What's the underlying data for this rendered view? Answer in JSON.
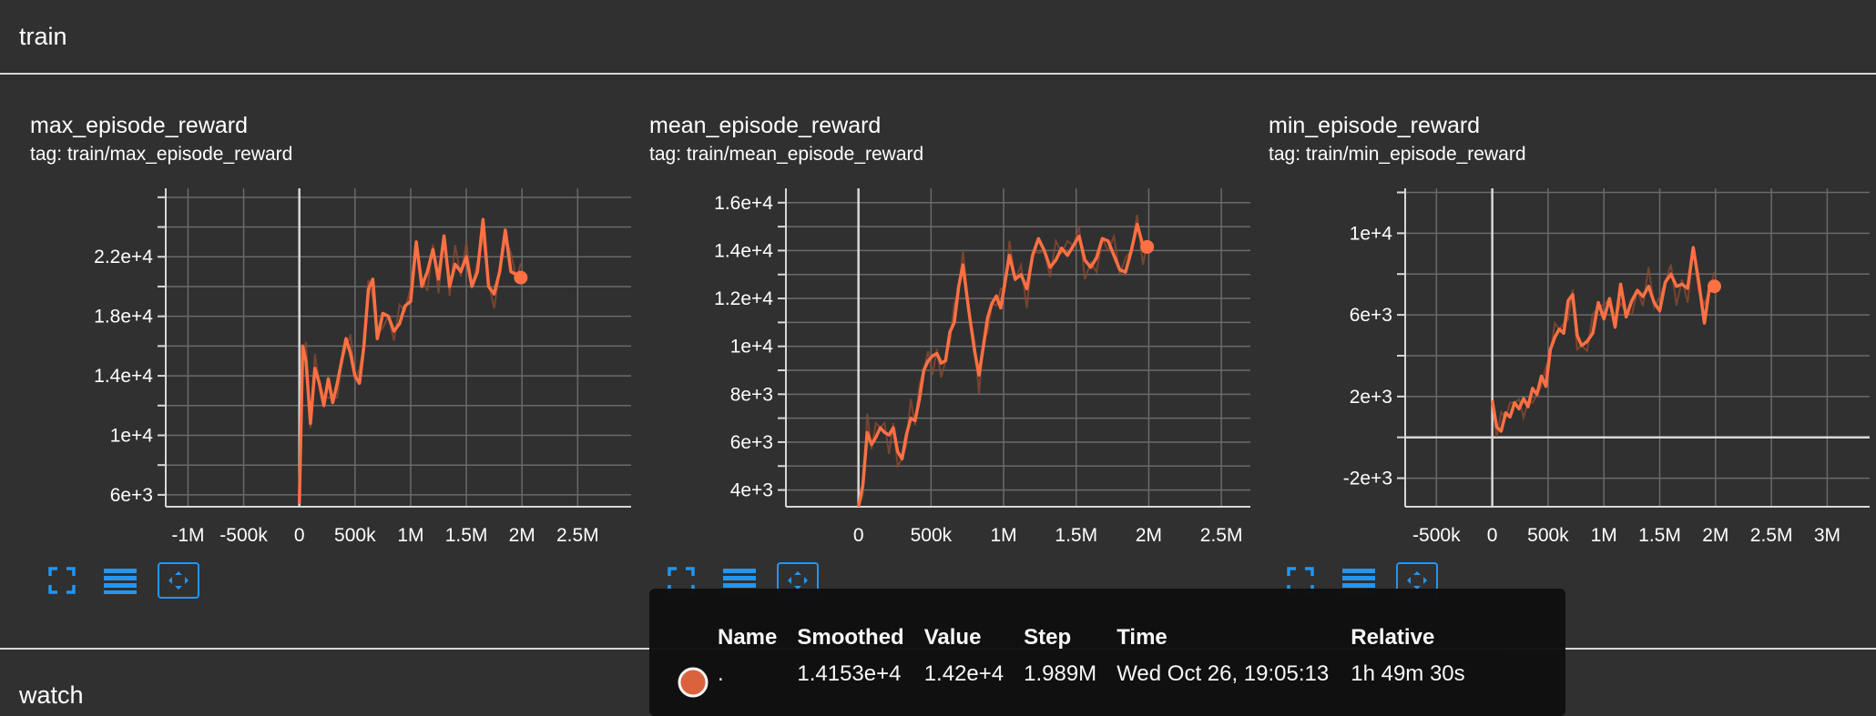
{
  "sections": {
    "train": "train",
    "watch": "watch"
  },
  "colors": {
    "line": "#ff7043",
    "raw": "#8a4a32",
    "grid": "#6a6a6a",
    "axis": "#d8d8d8",
    "button": "#2196f3",
    "swatch": "#e0653f"
  },
  "icons": [
    "fit-to-data-icon",
    "toggle-log-scale-icon",
    "expand-icon"
  ],
  "chart_data": [
    {
      "type": "line",
      "title": "max_episode_reward",
      "tag": "tag: train/max_episode_reward",
      "xlim": [
        -1200000,
        2980000
      ],
      "ylim": [
        5200000,
        0
      ],
      "ylim_real": [
        5200,
        26600
      ],
      "xticks": [
        -1000000,
        -500000,
        0,
        500000,
        1000000,
        1500000,
        2000000,
        2500000
      ],
      "xtick_labels": [
        "-1M",
        "-500k",
        "0",
        "500k",
        "1M",
        "1.5M",
        "2M",
        "2.5M"
      ],
      "yticks": [
        6000,
        10000,
        14000,
        18000,
        22000
      ],
      "ytick_labels": [
        "6e+3",
        "1e+4",
        "1.4e+4",
        "1.8e+4",
        "2.2e+4"
      ],
      "series": [
        {
          "x": [
            0,
            30000,
            60000,
            100000,
            140000,
            180000,
            220000,
            260000,
            300000,
            340000,
            380000,
            420000,
            460000,
            500000,
            540000,
            580000,
            620000,
            660000,
            700000,
            750000,
            800000,
            850000,
            900000,
            950000,
            1000000,
            1050000,
            1100000,
            1150000,
            1200000,
            1250000,
            1300000,
            1350000,
            1400000,
            1450000,
            1500000,
            1550000,
            1600000,
            1650000,
            1700000,
            1750000,
            1800000,
            1850000,
            1900000,
            1950000,
            1989000
          ],
          "y": [
            5400,
            16000,
            15000,
            10800,
            14500,
            13500,
            12000,
            13800,
            12200,
            13500,
            15000,
            16500,
            15500,
            14000,
            13500,
            16000,
            19800,
            20500,
            16500,
            18200,
            18000,
            17000,
            17500,
            18700,
            19000,
            23000,
            20000,
            21000,
            22500,
            20500,
            23400,
            20000,
            21500,
            21000,
            22000,
            20000,
            21000,
            24500,
            20000,
            19500,
            21000,
            23800,
            21000,
            20800,
            20600
          ]
        }
      ]
    },
    {
      "type": "line",
      "title": "mean_episode_reward",
      "tag": "tag: train/mean_episode_reward",
      "xlim": [
        -500000,
        2700000
      ],
      "ylim_real": [
        3300,
        16600
      ],
      "xticks": [
        0,
        500000,
        1000000,
        1500000,
        2000000,
        2500000
      ],
      "xtick_labels": [
        "0",
        "500k",
        "1M",
        "1.5M",
        "2M",
        "2.5M"
      ],
      "yticks": [
        4000,
        6000,
        8000,
        10000,
        12000,
        14000,
        16000
      ],
      "ytick_labels": [
        "4e+3",
        "6e+3",
        "8e+3",
        "1e+4",
        "1.2e+4",
        "1.4e+4",
        "1.6e+4"
      ],
      "series": [
        {
          "x": [
            0,
            30000,
            60000,
            90000,
            120000,
            150000,
            180000,
            210000,
            240000,
            270000,
            300000,
            330000,
            360000,
            390000,
            420000,
            450000,
            480000,
            510000,
            540000,
            570000,
            600000,
            630000,
            660000,
            690000,
            720000,
            760000,
            800000,
            830000,
            860000,
            890000,
            920000,
            950000,
            980000,
            1010000,
            1040000,
            1080000,
            1120000,
            1160000,
            1200000,
            1240000,
            1280000,
            1320000,
            1360000,
            1400000,
            1440000,
            1480000,
            1520000,
            1560000,
            1600000,
            1640000,
            1680000,
            1720000,
            1760000,
            1800000,
            1840000,
            1880000,
            1920000,
            1960000,
            1989000
          ],
          "y": [
            3300,
            4200,
            6400,
            5900,
            6200,
            6600,
            6400,
            6300,
            6600,
            5600,
            5300,
            6300,
            7000,
            6900,
            7800,
            9000,
            9400,
            9600,
            9700,
            9300,
            9400,
            10600,
            11000,
            12500,
            13400,
            11500,
            9800,
            8800,
            10000,
            11200,
            11800,
            12100,
            11600,
            12700,
            13800,
            12800,
            13000,
            12400,
            13800,
            14500,
            14000,
            13300,
            13600,
            14100,
            13800,
            14200,
            14600,
            13600,
            13300,
            13700,
            14500,
            14400,
            13800,
            13200,
            13100,
            14000,
            15100,
            14200,
            14153
          ]
        }
      ]
    },
    {
      "type": "line",
      "title": "min_episode_reward",
      "tag": "tag: train/min_episode_reward",
      "xlim": [
        -780000,
        3380000
      ],
      "ylim_real": [
        -3400,
        12200
      ],
      "xticks": [
        -500000,
        0,
        500000,
        1000000,
        1500000,
        2000000,
        2500000,
        3000000
      ],
      "xtick_labels": [
        "-500k",
        "0",
        "500k",
        "1M",
        "1.5M",
        "2M",
        "2.5M",
        "3M"
      ],
      "yticks": [
        -2000,
        2000,
        6000,
        10000
      ],
      "ytick_labels": [
        "-2e+3",
        "2e+3",
        "6e+3",
        "1e+4"
      ],
      "series": [
        {
          "x": [
            0,
            40000,
            80000,
            120000,
            160000,
            200000,
            240000,
            280000,
            320000,
            360000,
            400000,
            440000,
            480000,
            520000,
            560000,
            600000,
            640000,
            680000,
            720000,
            760000,
            800000,
            850000,
            900000,
            950000,
            1000000,
            1050000,
            1100000,
            1150000,
            1200000,
            1250000,
            1300000,
            1350000,
            1400000,
            1450000,
            1500000,
            1550000,
            1600000,
            1650000,
            1700000,
            1750000,
            1800000,
            1850000,
            1900000,
            1950000,
            1989000
          ],
          "y": [
            1800,
            500,
            300,
            1200,
            1000,
            1700,
            1400,
            1900,
            1500,
            2400,
            2100,
            3000,
            2500,
            4300,
            4900,
            5300,
            5100,
            6700,
            7000,
            5000,
            4500,
            4700,
            5100,
            6600,
            5800,
            6800,
            5400,
            7500,
            5900,
            6700,
            7200,
            6900,
            7400,
            6600,
            6200,
            7600,
            8000,
            7400,
            7500,
            7300,
            9300,
            7600,
            5600,
            7500,
            7400
          ]
        }
      ]
    }
  ],
  "tooltip": {
    "headers": [
      "Name",
      "Smoothed",
      "Value",
      "Step",
      "Time",
      "Relative"
    ],
    "row": [
      ".",
      "1.4153e+4",
      "1.42e+4",
      "1.989M",
      "Wed Oct 26, 19:05:13",
      "1h 49m 30s"
    ]
  }
}
